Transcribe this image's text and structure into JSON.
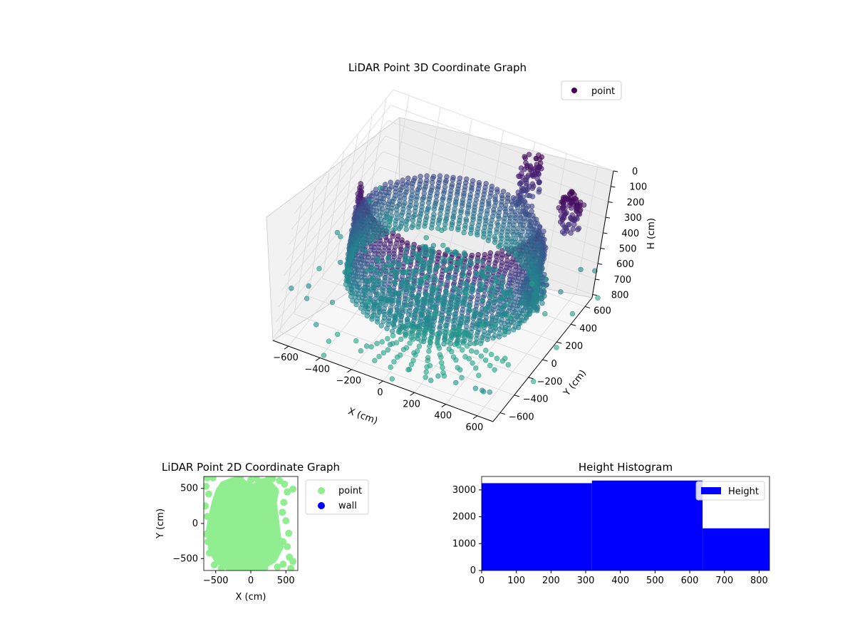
{
  "chart_data": [
    {
      "type": "scatter",
      "projection": "3d",
      "title": "LiDAR Point 3D Coordinate Graph",
      "xlabel": "X (cm)",
      "ylabel": "Y (cm)",
      "zlabel": "H (cm)",
      "xlim": [
        -700,
        700
      ],
      "ylim": [
        -700,
        700
      ],
      "zlim": [
        820,
        0
      ],
      "zaxis_inverted": true,
      "xticks": [
        "−600",
        "−400",
        "−200",
        "0",
        "200",
        "400",
        "600"
      ],
      "yticks": [
        "−600",
        "−400",
        "−200",
        "0",
        "200",
        "400",
        "600"
      ],
      "zticks": [
        "0",
        "100",
        "200",
        "300",
        "400",
        "500",
        "600",
        "700",
        "800"
      ],
      "grid": true,
      "legend": {
        "entries": [
          "point"
        ],
        "placement": "upper-right"
      },
      "colormap": "viridis",
      "colors": {
        "legend_marker": "#440154",
        "pane": "#f2f2f2",
        "grid": "#d9d9d9"
      },
      "series": [
        {
          "name": "point",
          "structures": [
            {
              "shape": "cylindrical wall",
              "center": [
                0,
                50
              ],
              "radius": 550,
              "h_range": [
                60,
                640
              ],
              "angle_range_deg": [
                200,
                360
              ]
            },
            {
              "shape": "cylindrical wall",
              "center": [
                0,
                50
              ],
              "radius": 550,
              "h_range": [
                300,
                640
              ],
              "angle_range_deg": [
                0,
                200
              ]
            },
            {
              "shape": "disc",
              "center": [
                0,
                0
              ],
              "radius": 430,
              "h": 640
            },
            {
              "shape": "vertical cluster",
              "center": [
                240,
                580
              ],
              "h_range": [
                0,
                360
              ]
            },
            {
              "shape": "vertical cluster",
              "center": [
                550,
                80
              ],
              "h_range": [
                380,
                560
              ]
            },
            {
              "shape": "vertical cluster",
              "center": [
                600,
                350
              ],
              "h_range": [
                0,
                220
              ]
            },
            {
              "shape": "radial spokes",
              "center": [
                0,
                0
              ],
              "h": 780
            },
            {
              "shape": "scattered outliers",
              "h_range": [
                600,
                820
              ]
            }
          ]
        }
      ]
    },
    {
      "type": "scatter",
      "title": "LiDAR Point 2D Coordinate Graph",
      "xlabel": "X (cm)",
      "ylabel": "Y (cm)",
      "xlim": [
        -670,
        670
      ],
      "ylim": [
        -670,
        670
      ],
      "xticks": [
        -500,
        0,
        500
      ],
      "yticks": [
        -500,
        0,
        500
      ],
      "legend": {
        "entries": [
          "point",
          "wall"
        ],
        "placement": "outside-right"
      },
      "series": [
        {
          "name": "point",
          "color": "#90ee90",
          "outline": [
            [
              -180,
              640
            ],
            [
              -60,
              560
            ],
            [
              50,
              520
            ],
            [
              130,
              600
            ],
            [
              230,
              610
            ],
            [
              360,
              470
            ],
            [
              330,
              300
            ],
            [
              360,
              60
            ],
            [
              390,
              -190
            ],
            [
              430,
              -330
            ],
            [
              330,
              -520
            ],
            [
              120,
              -640
            ],
            [
              -300,
              -640
            ],
            [
              -470,
              -540
            ],
            [
              -560,
              -400
            ],
            [
              -600,
              -100
            ],
            [
              -560,
              120
            ],
            [
              -510,
              320
            ],
            [
              -460,
              470
            ],
            [
              -400,
              560
            ],
            [
              -300,
              600
            ]
          ],
          "scatter": [
            [
              -620,
              650
            ],
            [
              -540,
              650
            ],
            [
              -640,
              530
            ],
            [
              -600,
              420
            ],
            [
              -650,
              250
            ],
            [
              -620,
              100
            ],
            [
              -630,
              -150
            ],
            [
              -610,
              -260
            ],
            [
              -560,
              -330
            ],
            [
              -590,
              -420
            ],
            [
              -520,
              -590
            ],
            [
              -420,
              -640
            ],
            [
              -300,
              -660
            ],
            [
              250,
              630
            ],
            [
              310,
              640
            ],
            [
              410,
              610
            ],
            [
              480,
              560
            ],
            [
              520,
              450
            ],
            [
              600,
              490
            ],
            [
              470,
              300
            ],
            [
              450,
              160
            ],
            [
              500,
              40
            ],
            [
              540,
              -140
            ],
            [
              460,
              -260
            ],
            [
              520,
              -330
            ],
            [
              550,
              -480
            ],
            [
              600,
              -540
            ],
            [
              570,
              -640
            ],
            [
              460,
              -580
            ],
            [
              380,
              -620
            ],
            [
              200,
              -630
            ],
            [
              -150,
              650
            ],
            [
              0,
              620
            ],
            [
              80,
              640
            ]
          ]
        },
        {
          "name": "wall",
          "color": "#0000ff",
          "values": []
        }
      ]
    },
    {
      "type": "bar",
      "title": "Height Histogram",
      "xlim": [
        0,
        830
      ],
      "ylim": [
        0,
        3500
      ],
      "xticks": [
        0,
        100,
        200,
        300,
        400,
        500,
        600,
        700,
        800
      ],
      "yticks": [
        0,
        1000,
        2000,
        3000
      ],
      "legend": {
        "entries": [
          "Height"
        ],
        "placement": "upper-right"
      },
      "series": [
        {
          "name": "Height",
          "color": "#0000ff",
          "bins": [
            [
              0,
              318,
              3250
            ],
            [
              318,
              637,
              3350
            ],
            [
              637,
              830,
              1570
            ]
          ]
        }
      ]
    }
  ]
}
